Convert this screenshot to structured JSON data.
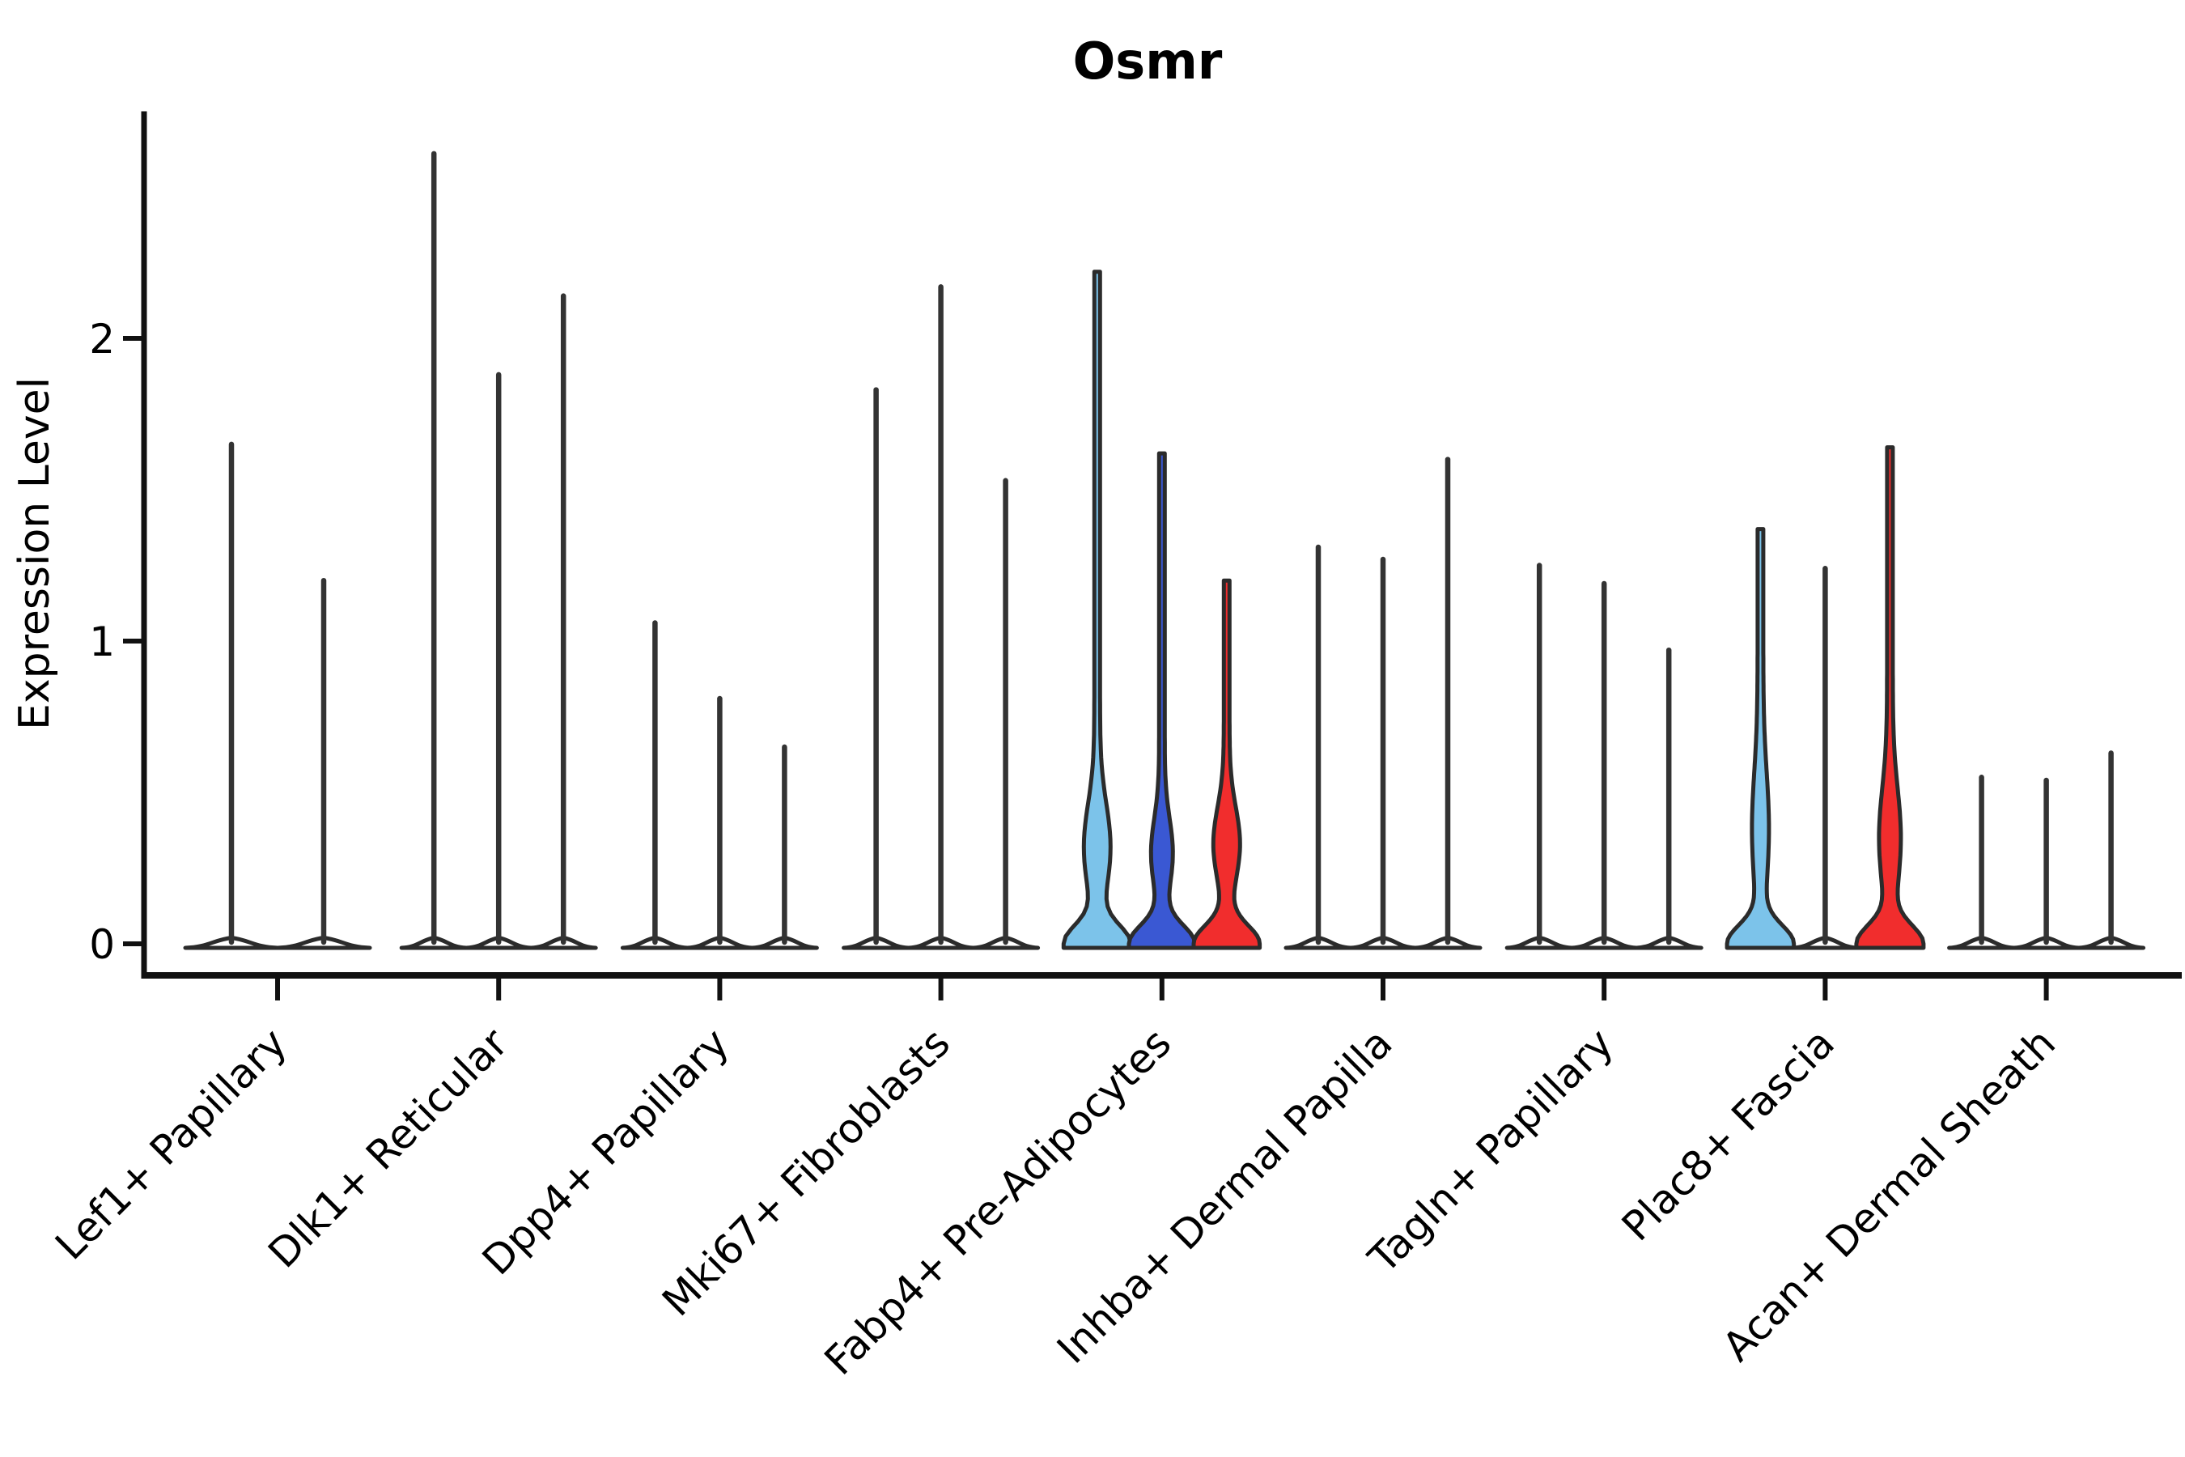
{
  "chart_data": {
    "type": "violin",
    "title": "Osmr",
    "xlabel": "",
    "ylabel": "Expression Level",
    "yticks": [
      0,
      1,
      2
    ],
    "ylim": [
      -0.12,
      2.75
    ],
    "grid": false,
    "legend": "none",
    "colors": {
      "light_blue": "#7CC3EA",
      "dark_blue": "#3A58D3",
      "red": "#F12D2D",
      "outline": "#2B2B2B",
      "axis": "#111111"
    },
    "note_semantics": "Each group shows violins of Osmr expression; 'max' is the top of each violin (max expression). Violins without a color are unfilled thin spikes over a flat base at 0.",
    "groups": [
      {
        "label": "Lef1+ Papillary",
        "violins": [
          {
            "max": 1.65,
            "color": null
          },
          {
            "max": 1.2,
            "color": null
          }
        ]
      },
      {
        "label": "Dlk1+ Reticular",
        "violins": [
          {
            "max": 2.61,
            "color": null
          },
          {
            "max": 1.88,
            "color": null
          },
          {
            "max": 2.14,
            "color": null
          }
        ]
      },
      {
        "label": "Dpp4+ Papillary",
        "violins": [
          {
            "max": 1.06,
            "color": null
          },
          {
            "max": 0.81,
            "color": null
          },
          {
            "max": 0.65,
            "color": null
          }
        ]
      },
      {
        "label": "Mki67+ Fibroblasts",
        "violins": [
          {
            "max": 1.83,
            "color": null
          },
          {
            "max": 2.17,
            "color": null
          },
          {
            "max": 1.53,
            "color": null
          }
        ]
      },
      {
        "label": "Fabp4+ Pre-Adipocytes",
        "violins": [
          {
            "max": 2.22,
            "color": "light_blue",
            "bulge": {
              "w": 13,
              "c": 0.32,
              "s": 0.2
            }
          },
          {
            "max": 1.62,
            "color": "dark_blue",
            "bulge": {
              "w": 10,
              "c": 0.3,
              "s": 0.16
            }
          },
          {
            "max": 1.2,
            "color": "red",
            "bulge": {
              "w": 13,
              "c": 0.33,
              "s": 0.17
            }
          }
        ]
      },
      {
        "label": "Inhba+ Dermal Papilla",
        "violins": [
          {
            "max": 1.31,
            "color": null
          },
          {
            "max": 1.27,
            "color": null
          },
          {
            "max": 1.6,
            "color": null
          }
        ]
      },
      {
        "label": "Tagln+ Papillary",
        "violins": [
          {
            "max": 1.25,
            "color": null
          },
          {
            "max": 1.19,
            "color": null
          },
          {
            "max": 0.97,
            "color": null
          }
        ]
      },
      {
        "label": "Plac8+ Fascia",
        "violins": [
          {
            "max": 1.37,
            "color": "light_blue",
            "bulge": {
              "w": 7,
              "c": 0.38,
              "s": 0.26
            }
          },
          {
            "max": 1.24,
            "color": null
          },
          {
            "max": 1.64,
            "color": "red",
            "bulge": {
              "w": 10,
              "c": 0.35,
              "s": 0.23
            }
          }
        ]
      },
      {
        "label": "Acan+ Dermal Sheath",
        "violins": [
          {
            "max": 0.55,
            "color": null
          },
          {
            "max": 0.54,
            "color": null
          },
          {
            "max": 0.63,
            "color": null
          }
        ]
      }
    ]
  }
}
